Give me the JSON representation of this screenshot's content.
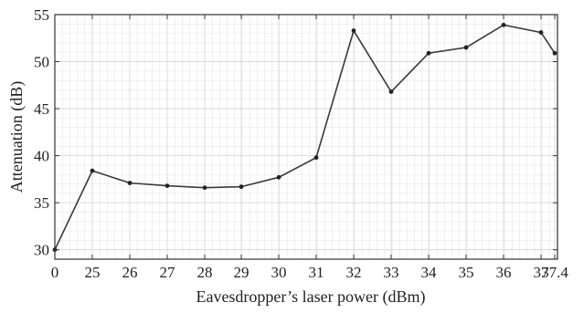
{
  "chart_data": {
    "type": "line",
    "title": "",
    "xlabel": "Eavesdropper’s laser power (dBm)",
    "ylabel": "Attenuation (dB)",
    "x_tick_labels": [
      "0",
      "25",
      "26",
      "27",
      "28",
      "29",
      "30",
      "31",
      "32",
      "33",
      "34",
      "35",
      "36",
      "37",
      "37.4"
    ],
    "ylim": [
      29,
      55
    ],
    "y_ticks": [
      30,
      35,
      40,
      45,
      50,
      55
    ],
    "grid": true,
    "legend": "none",
    "series": [
      {
        "color": "#3a3a3a",
        "points": [
          {
            "x": "0",
            "y": 30.0
          },
          {
            "x": "25",
            "y": 38.4
          },
          {
            "x": "26",
            "y": 37.1
          },
          {
            "x": "27",
            "y": 36.8
          },
          {
            "x": "28",
            "y": 36.6
          },
          {
            "x": "29",
            "y": 36.7
          },
          {
            "x": "30",
            "y": 37.7
          },
          {
            "x": "31",
            "y": 39.8
          },
          {
            "x": "32",
            "y": 53.3
          },
          {
            "x": "33",
            "y": 46.8
          },
          {
            "x": "34",
            "y": 50.9
          },
          {
            "x": "35",
            "y": 51.5
          },
          {
            "x": "36",
            "y": 53.9
          },
          {
            "x": "37",
            "y": 53.1
          },
          {
            "x": "37.4",
            "y": 50.9
          }
        ]
      }
    ]
  }
}
